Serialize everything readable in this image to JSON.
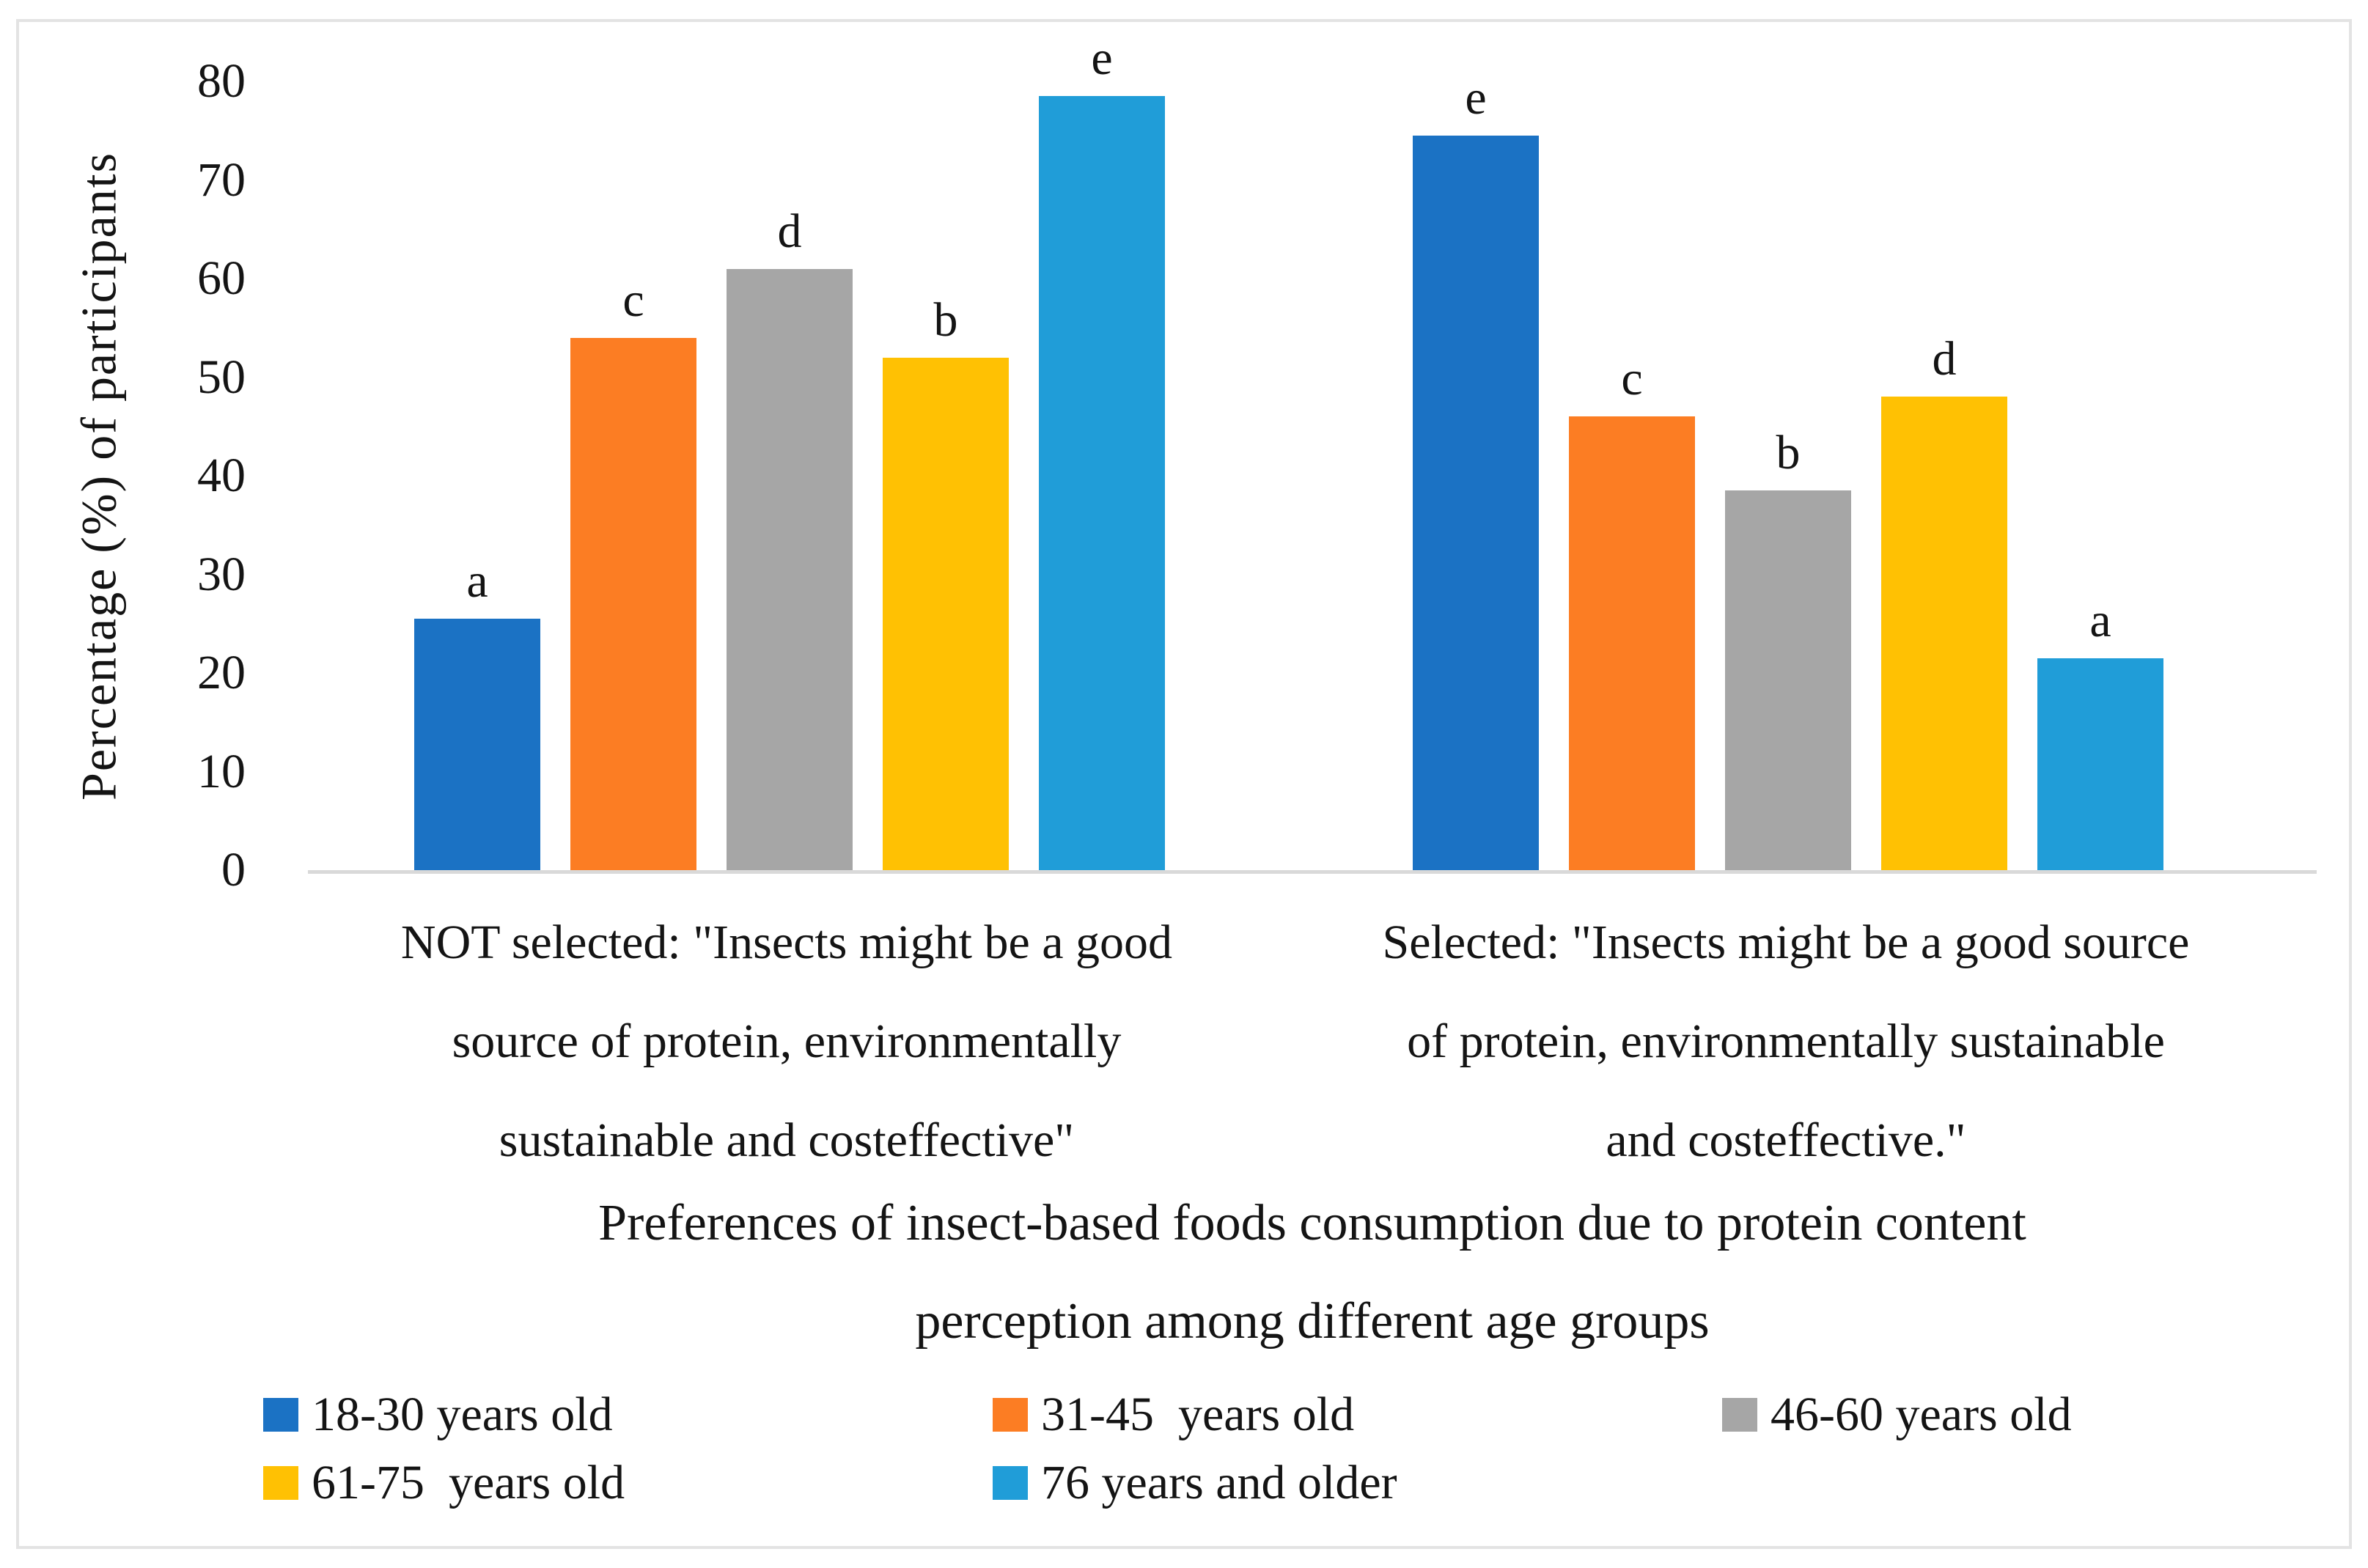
{
  "chart_data": {
    "type": "bar",
    "title": "Preferences of insect-based foods consumption due to protein content\nperception among different age groups",
    "ylabel": "Percentage (%) of participants",
    "xlabel": "",
    "ylim": [
      0,
      80
    ],
    "yticks": [
      0,
      10,
      20,
      30,
      40,
      50,
      60,
      70,
      80
    ],
    "grid": false,
    "legend_position": "bottom",
    "categories": [
      "NOT selected: \"Insects might be a good\nsource of protein, environmentally\nsustainable and costeffective\"",
      "Selected: \"Insects might be a good source\nof protein, environmentally sustainable\nand costeffective.\""
    ],
    "series": [
      {
        "name": "18-30 years old",
        "color": "#1B72C4",
        "values": [
          25.5,
          74.5
        ],
        "letters": [
          "a",
          "e"
        ]
      },
      {
        "name": "31-45  years old",
        "color": "#FC7D23",
        "values": [
          54,
          46
        ],
        "letters": [
          "c",
          "c"
        ]
      },
      {
        "name": "46-60 years old",
        "color": "#A6A6A6",
        "values": [
          61,
          38.5
        ],
        "letters": [
          "d",
          "b"
        ]
      },
      {
        "name": "61-75  years old",
        "color": "#FFC103",
        "values": [
          52,
          48
        ],
        "letters": [
          "b",
          "d"
        ]
      },
      {
        "name": "76 years and older",
        "color": "#209DD8",
        "values": [
          78.5,
          21.5
        ],
        "letters": [
          "e",
          "a"
        ]
      }
    ],
    "axis_line_color": "#D9D9D9",
    "frame_color": "#E3E3E3"
  }
}
